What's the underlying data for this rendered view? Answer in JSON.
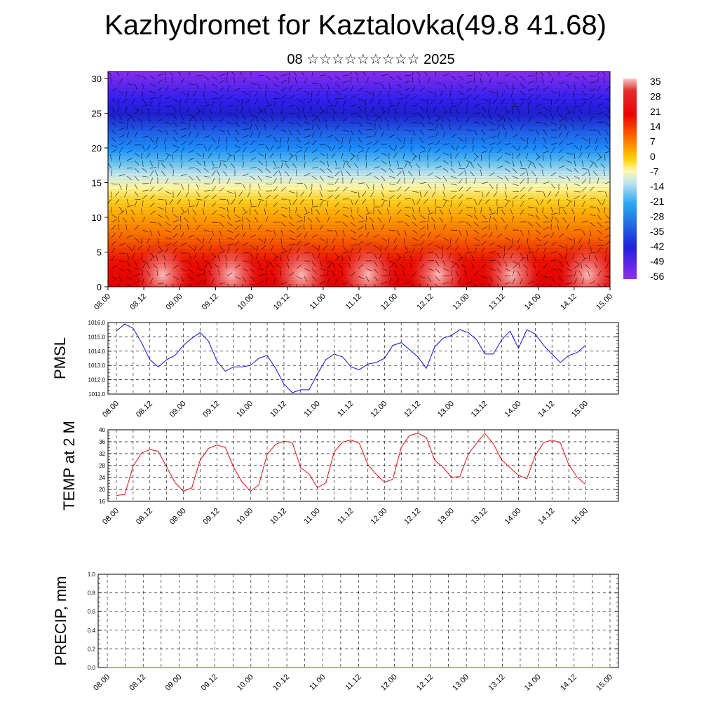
{
  "title": "Kazhydromet for Kaztalovka(49.8 41.68)",
  "subtitle": "08 ☆☆☆☆☆☆☆☆☆ 2025",
  "colors": {
    "pmsl_line": "#1010e0",
    "temp_line": "#e01010",
    "precip_line": "#00aa00"
  },
  "chart_data": [
    {
      "id": "cross_section",
      "type": "heatmap",
      "title": "",
      "xlabel": "",
      "ylabel": "",
      "x_tick_labels": [
        "08.00",
        "08.12",
        "09.00",
        "09.12",
        "10.00",
        "10.12",
        "11.00",
        "11.12",
        "12.00",
        "12.12",
        "13.00",
        "13.12",
        "14.00",
        "14.12",
        "15.00"
      ],
      "y_ticks": [
        0,
        5,
        10,
        15,
        20,
        25,
        30
      ],
      "ylim": [
        0,
        31
      ],
      "colorbar_labels": [
        "35",
        "28",
        "21",
        "14",
        "7",
        "0",
        "-7",
        "-14",
        "-21",
        "-28",
        "-35",
        "-42",
        "-49",
        "-56"
      ],
      "note_fields": "temperature field shading with wind vectors overlaid"
    },
    {
      "id": "pmsl",
      "type": "line",
      "ylabel": "PMSL",
      "ylim": [
        1011.0,
        1016.0
      ],
      "y_tick_labels": [
        "1016.0",
        "1015.0",
        "1014.0",
        "1013.0",
        "1012.0",
        "1011.0"
      ],
      "x_tick_labels": [
        "08.00",
        "08.12",
        "09.00",
        "09.12",
        "10.00",
        "10.12",
        "11.00",
        "11.12",
        "12.00",
        "12.12",
        "13.00",
        "13.12",
        "14.00",
        "14.12",
        "15.00"
      ],
      "series": [
        {
          "values": [
            1015.4,
            1015.9,
            1015.6,
            1014.6,
            1013.4,
            1012.9,
            1013.4,
            1013.7,
            1014.4,
            1014.9,
            1015.3,
            1014.7,
            1013.3,
            1012.6,
            1012.9,
            1012.9,
            1013.0,
            1013.5,
            1013.7,
            1012.8,
            1011.7,
            1011.1,
            1011.3,
            1011.3,
            1012.4,
            1013.4,
            1013.8,
            1013.6,
            1012.9,
            1012.7,
            1013.1,
            1013.2,
            1013.5,
            1014.4,
            1014.6,
            1014.1,
            1013.6,
            1012.8,
            1014.3,
            1014.9,
            1015.1,
            1015.5,
            1015.3,
            1014.8,
            1013.8,
            1013.8,
            1014.8,
            1015.4,
            1014.2,
            1015.5,
            1015.2,
            1014.4,
            1013.8,
            1013.2,
            1013.7,
            1013.9,
            1014.4
          ]
        }
      ]
    },
    {
      "id": "temp2m",
      "type": "line",
      "ylabel": "TEMP at 2 M",
      "ylim": [
        16,
        40
      ],
      "y_tick_labels": [
        "40",
        "36",
        "32",
        "28",
        "24",
        "20",
        "16"
      ],
      "x_tick_labels": [
        "08.00",
        "08.12",
        "09.00",
        "09.12",
        "10.00",
        "10.12",
        "11.00",
        "11.12",
        "12.00",
        "12.12",
        "13.00",
        "13.12",
        "14.00",
        "14.12",
        "15.00"
      ],
      "series": [
        {
          "values": [
            18.0,
            18.3,
            27.8,
            32.2,
            33.4,
            32.8,
            27.5,
            22.3,
            19.4,
            20.5,
            29.9,
            33.8,
            34.9,
            34.1,
            27.4,
            22.5,
            19.4,
            21.5,
            31.8,
            35.1,
            36.2,
            35.7,
            27.3,
            25.2,
            20.6,
            22.2,
            32.6,
            35.9,
            36.6,
            35.5,
            28.4,
            25.1,
            22.4,
            23.4,
            34.1,
            38.1,
            38.9,
            37.4,
            29.8,
            27.4,
            24.1,
            24.3,
            31.8,
            35.6,
            38.8,
            35.3,
            29.9,
            27.3,
            24.7,
            23.6,
            31.3,
            35.7,
            36.6,
            35.6,
            28.3,
            24.1,
            21.7
          ]
        }
      ]
    },
    {
      "id": "precip",
      "type": "line",
      "ylabel": "PRECIP, mm",
      "ylim": [
        0.0,
        1.0
      ],
      "y_tick_labels": [
        "1.0",
        "0.8",
        "0.6",
        "0.4",
        "0.2",
        "0.0"
      ],
      "x_tick_labels": [
        "08.00",
        "08.12",
        "09.00",
        "09.12",
        "10.00",
        "10.12",
        "11.00",
        "11.12",
        "12.00",
        "12.12",
        "13.00",
        "13.12",
        "14.00",
        "14.12",
        "15.00"
      ],
      "series": [
        {
          "values": [
            0,
            0,
            0,
            0,
            0,
            0,
            0,
            0,
            0,
            0,
            0,
            0,
            0,
            0,
            0,
            0,
            0,
            0,
            0,
            0,
            0,
            0,
            0,
            0,
            0,
            0,
            0,
            0,
            0,
            0,
            0,
            0,
            0,
            0,
            0,
            0,
            0,
            0,
            0,
            0,
            0,
            0,
            0,
            0,
            0,
            0,
            0,
            0,
            0,
            0,
            0,
            0,
            0,
            0,
            0,
            0,
            0
          ]
        }
      ]
    }
  ]
}
